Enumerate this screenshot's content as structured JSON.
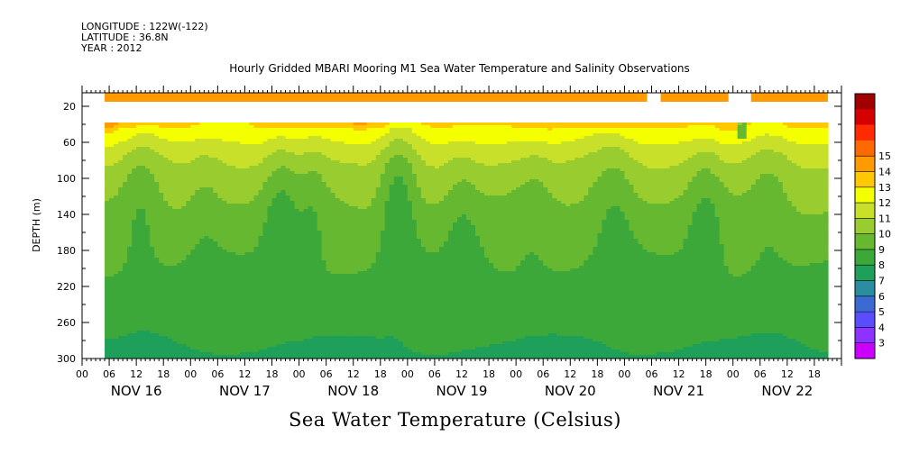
{
  "header": {
    "longitude": "LONGITUDE : 122W(-122)",
    "latitude": "LATITUDE : 36.8N",
    "year": "YEAR : 2012"
  },
  "title": "Hourly Gridded MBARI Mooring M1 Sea Water Temperature and Salinity Observations",
  "bottom_title": "Sea Water Temperature (Celsius)",
  "chart_data": {
    "type": "heatmap",
    "title": "Hourly Gridded MBARI Mooring M1 Sea Water Temperature and Salinity Observations",
    "xlabel": "",
    "ylabel": "DEPTH (m)",
    "colorbar_label": "Sea Water Temperature (Celsius)",
    "hour_ticks": [
      "00",
      "06",
      "12",
      "18",
      "00",
      "06",
      "12",
      "18",
      "00",
      "06",
      "12",
      "18",
      "00",
      "06",
      "12",
      "18",
      "00",
      "06",
      "12",
      "18",
      "00",
      "06",
      "12",
      "18",
      "00",
      "06",
      "12",
      "18"
    ],
    "day_labels": [
      "NOV 16",
      "NOV 17",
      "NOV 18",
      "NOV 19",
      "NOV 20",
      "NOV 21",
      "NOV 22"
    ],
    "xlim_hours_from_nov16_00": [
      0,
      168
    ],
    "data_start_hour": 5,
    "data_end_hour": 165,
    "y_ticks": [
      20,
      60,
      100,
      140,
      180,
      220,
      260,
      300
    ],
    "ylim": [
      300,
      5
    ],
    "colorbar_levels": [
      3,
      4,
      5,
      6,
      7,
      8,
      9,
      10,
      11,
      12,
      13,
      14,
      15
    ],
    "colorbar_colors": [
      "#cc00ff",
      "#8c33ff",
      "#5a4cff",
      "#3a6ad2",
      "#2a8ea0",
      "#1fa05a",
      "#3ca83a",
      "#66b830",
      "#99cc2e",
      "#c8e02a",
      "#f4ff00",
      "#ffc800",
      "#ff9a00",
      "#ff6a00",
      "#ff2a00",
      "#d60000",
      "#a00000"
    ],
    "surface_band": {
      "depth_range": [
        5,
        15
      ],
      "segments_hours": [
        [
          5,
          125
        ],
        [
          128,
          143
        ],
        [
          148,
          165
        ]
      ],
      "temperature": 14.5
    },
    "gap_depth_range": [
      15,
      38
    ],
    "anomaly": {
      "hour": 146,
      "depth_range": [
        38,
        56
      ],
      "temperature": 8
    },
    "profile_depth": [
      38,
      50,
      62,
      75,
      90,
      110,
      135,
      160,
      190,
      230,
      270,
      300
    ],
    "profile_base_temp": [
      13.3,
      12.7,
      12.0,
      11.4,
      10.9,
      10.4,
      9.9,
      9.5,
      9.1,
      8.6,
      8.2,
      7.8
    ],
    "upwelling_events": [
      {
        "hour": 13,
        "width": 4,
        "strength": 1.0
      },
      {
        "hour": 27,
        "width": 4,
        "strength": 0.7
      },
      {
        "hour": 44,
        "width": 4,
        "strength": 1.5
      },
      {
        "hour": 51,
        "width": 3,
        "strength": 0.8
      },
      {
        "hour": 70,
        "width": 4,
        "strength": 2.0
      },
      {
        "hour": 84,
        "width": 4,
        "strength": 0.9
      },
      {
        "hour": 100,
        "width": 4,
        "strength": 0.6
      },
      {
        "hour": 118,
        "width": 5,
        "strength": 1.3
      },
      {
        "hour": 138,
        "width": 4,
        "strength": 1.2
      },
      {
        "hour": 152,
        "width": 4,
        "strength": 0.7
      }
    ]
  }
}
